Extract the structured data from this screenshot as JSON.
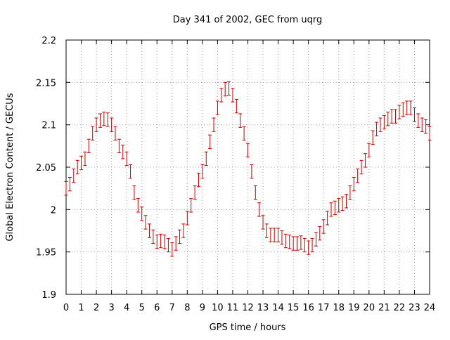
{
  "chart_data": {
    "type": "scatter",
    "title": "Day 341 of 2002, GEC from uqrg",
    "xlabel": "GPS time / hours",
    "ylabel": "Global Electron Content / GECUs",
    "xlim": [
      0,
      24
    ],
    "ylim": [
      1.9,
      2.2
    ],
    "xticks": [
      "0",
      "1",
      "2",
      "3",
      "4",
      "5",
      "6",
      "7",
      "8",
      "9",
      "10",
      "11",
      "12",
      "13",
      "14",
      "15",
      "16",
      "17",
      "18",
      "19",
      "20",
      "21",
      "22",
      "23",
      "24"
    ],
    "yticks": [
      "1.9",
      "1.95",
      "2",
      "2.05",
      "2.1",
      "2.15",
      "2.2"
    ],
    "grid": true,
    "series_color": "#c00000",
    "error_bar": 0.008,
    "series": [
      {
        "x": [
          0,
          0.25,
          0.5,
          0.75,
          1,
          1.25,
          1.5,
          1.75,
          2,
          2.25,
          2.5,
          2.75,
          3,
          3.25,
          3.5,
          3.75,
          4,
          4.25,
          4.5,
          4.75,
          5,
          5.25,
          5.5,
          5.75,
          6,
          6.25,
          6.5,
          6.75,
          7,
          7.25,
          7.5,
          7.75,
          8,
          8.25,
          8.5,
          8.75,
          9,
          9.25,
          9.5,
          9.75,
          10,
          10.25,
          10.5,
          10.75,
          11,
          11.25,
          11.5,
          11.75,
          12,
          12.25,
          12.5,
          12.75,
          13,
          13.25,
          13.5,
          13.75,
          14,
          14.25,
          14.5,
          14.75,
          15,
          15.25,
          15.5,
          15.75,
          16,
          16.25,
          16.5,
          16.75,
          17,
          17.25,
          17.5,
          17.75,
          18,
          18.25,
          18.5,
          18.75,
          19,
          19.25,
          19.5,
          19.75,
          20,
          20.25,
          20.5,
          20.75,
          21,
          21.25,
          21.5,
          21.75,
          22,
          22.25,
          22.5,
          22.75,
          23,
          23.25,
          23.5,
          23.75,
          24
        ],
        "y": [
          2.025,
          2.03,
          2.04,
          2.05,
          2.055,
          2.06,
          2.075,
          2.09,
          2.1,
          2.105,
          2.107,
          2.106,
          2.1,
          2.09,
          2.075,
          2.068,
          2.06,
          2.045,
          2.02,
          2.005,
          1.995,
          1.985,
          1.975,
          1.968,
          1.962,
          1.963,
          1.962,
          1.958,
          1.953,
          1.96,
          1.968,
          1.975,
          1.99,
          2.005,
          2.02,
          2.035,
          2.045,
          2.06,
          2.08,
          2.1,
          2.12,
          2.135,
          2.142,
          2.143,
          2.135,
          2.122,
          2.105,
          2.09,
          2.07,
          2.045,
          2.02,
          2.0,
          1.985,
          1.975,
          1.97,
          1.97,
          1.97,
          1.967,
          1.963,
          1.962,
          1.96,
          1.96,
          1.961,
          1.958,
          1.955,
          1.958,
          1.965,
          1.972,
          1.98,
          1.99,
          2.0,
          2.002,
          2.005,
          2.007,
          2.01,
          2.02,
          2.03,
          2.04,
          2.05,
          2.058,
          2.07,
          2.085,
          2.095,
          2.1,
          2.103,
          2.107,
          2.11,
          2.11,
          2.115,
          2.118,
          2.12,
          2.12,
          2.112,
          2.105,
          2.1,
          2.098,
          2.09
        ]
      }
    ]
  }
}
